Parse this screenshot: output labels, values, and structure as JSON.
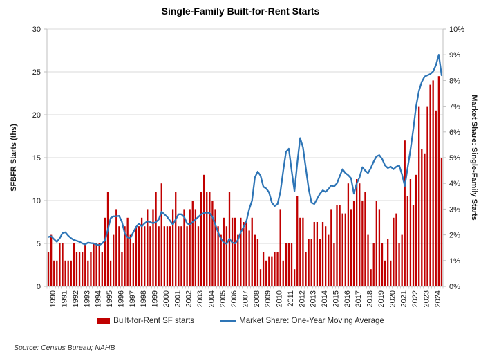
{
  "title": "Single-Family Built-for-Rent Starts",
  "source_note": "Source: Census Bureau; NAHB",
  "colors": {
    "bar": "#C00000",
    "line": "#2E75B6",
    "gridline": "#D9D9D9",
    "axis": "#BFBFBF",
    "text": "#1a1a1a"
  },
  "left_axis": {
    "title": "SFBFR Starts (ths)",
    "tick_labels": [
      "0",
      "5",
      "10",
      "15",
      "20",
      "25",
      "30"
    ],
    "min": 0,
    "max": 30
  },
  "right_axis": {
    "title": "Market Share: Single-Family Starts",
    "tick_labels": [
      "0%",
      "1%",
      "2%",
      "3%",
      "4%",
      "5%",
      "6%",
      "7%",
      "8%",
      "9%",
      "10%"
    ],
    "min": 0,
    "max": 10
  },
  "chart_data": {
    "type": "bar",
    "note": "combination chart: quarterly bars on left axis (thousands of starts) and one-year moving-average market-share line on right axis (percent), 1990Q1-2024Q4",
    "x_year_labels": [
      "1990",
      "1991",
      "1992",
      "1993",
      "1994",
      "1995",
      "1996",
      "1997",
      "1998",
      "1999",
      "2000",
      "2001",
      "2002",
      "2003",
      "2004",
      "2005",
      "2006",
      "2007",
      "2008",
      "2009",
      "2010",
      "2011",
      "2012",
      "2013",
      "2014",
      "2015",
      "2016",
      "2017",
      "2018",
      "2019",
      "2020",
      "2021",
      "2022",
      "2023",
      "2024"
    ],
    "quarters_per_year": 4,
    "grid": true,
    "legend_position": "bottom",
    "series": [
      {
        "name": "Built-for-Rent SF starts",
        "type": "bar",
        "axis": "left",
        "color": "#C00000",
        "values": [
          4,
          6,
          3,
          3,
          5,
          5,
          3,
          3,
          3,
          5,
          4,
          4,
          4,
          5,
          3,
          4,
          5,
          5,
          5,
          4,
          8,
          11,
          3,
          6,
          9,
          7,
          4,
          7,
          8,
          6,
          5,
          7,
          7,
          8,
          7,
          9,
          7,
          9,
          11,
          7,
          12,
          7,
          7,
          7,
          9,
          11,
          7,
          7,
          9,
          7,
          9,
          10,
          9,
          7,
          11,
          13,
          11,
          11,
          10,
          9,
          7,
          6,
          8,
          7,
          11,
          8,
          8,
          6,
          8,
          7.5,
          7.5,
          6.5,
          8,
          6,
          5.5,
          2,
          4,
          3,
          3.5,
          3.5,
          4,
          4,
          9,
          3,
          5,
          5,
          5,
          2,
          10.5,
          8,
          8,
          4,
          5.5,
          5.5,
          7.5,
          7.5,
          5.5,
          7.5,
          7,
          6,
          9,
          5,
          9.5,
          9.5,
          8.5,
          8.5,
          12,
          9,
          10,
          12.5,
          12,
          10,
          11,
          6,
          2,
          5,
          10,
          9,
          5,
          3,
          5.5,
          3,
          8,
          8.5,
          5,
          6,
          17,
          10.5,
          12.5,
          9.5,
          13,
          21,
          16,
          15.5,
          21,
          23.5,
          24,
          20.5,
          24.5,
          15
        ]
      },
      {
        "name": "Market Share: One-Year Moving Average",
        "type": "line",
        "axis": "right",
        "color": "#2E75B6",
        "values_pct": [
          1.92,
          1.95,
          1.83,
          1.73,
          1.87,
          2.07,
          2.1,
          1.97,
          1.87,
          1.8,
          1.77,
          1.73,
          1.67,
          1.63,
          1.7,
          1.68,
          1.67,
          1.62,
          1.6,
          1.67,
          1.78,
          2.2,
          2.65,
          2.72,
          2.72,
          2.74,
          2.5,
          2.05,
          1.9,
          1.88,
          2.1,
          2.3,
          2.44,
          2.33,
          2.45,
          2.53,
          2.5,
          2.45,
          2.5,
          2.6,
          2.9,
          2.8,
          2.7,
          2.55,
          2.4,
          2.6,
          2.8,
          2.8,
          2.7,
          2.45,
          2.4,
          2.5,
          2.6,
          2.7,
          2.8,
          2.85,
          2.87,
          2.85,
          2.7,
          2.4,
          2.1,
          1.85,
          1.7,
          1.65,
          1.85,
          1.7,
          1.67,
          1.8,
          2.1,
          2.31,
          2.53,
          3.0,
          3.33,
          4.23,
          4.46,
          4.3,
          3.87,
          3.8,
          3.65,
          3.25,
          3.12,
          3.2,
          3.67,
          4.49,
          5.22,
          5.35,
          4.5,
          3.7,
          4.8,
          5.76,
          5.4,
          4.6,
          3.8,
          3.25,
          3.2,
          3.4,
          3.6,
          3.73,
          3.67,
          3.78,
          3.92,
          3.88,
          4.0,
          4.28,
          4.55,
          4.4,
          4.32,
          4.2,
          3.6,
          4.0,
          4.24,
          4.63,
          4.5,
          4.4,
          4.6,
          4.85,
          5.05,
          5.1,
          4.95,
          4.7,
          4.6,
          4.65,
          4.55,
          4.65,
          4.7,
          4.35,
          3.9,
          4.6,
          5.3,
          6.1,
          7.0,
          7.6,
          7.95,
          8.15,
          8.2,
          8.25,
          8.35,
          8.6,
          9.0,
          8.2
        ]
      }
    ]
  }
}
